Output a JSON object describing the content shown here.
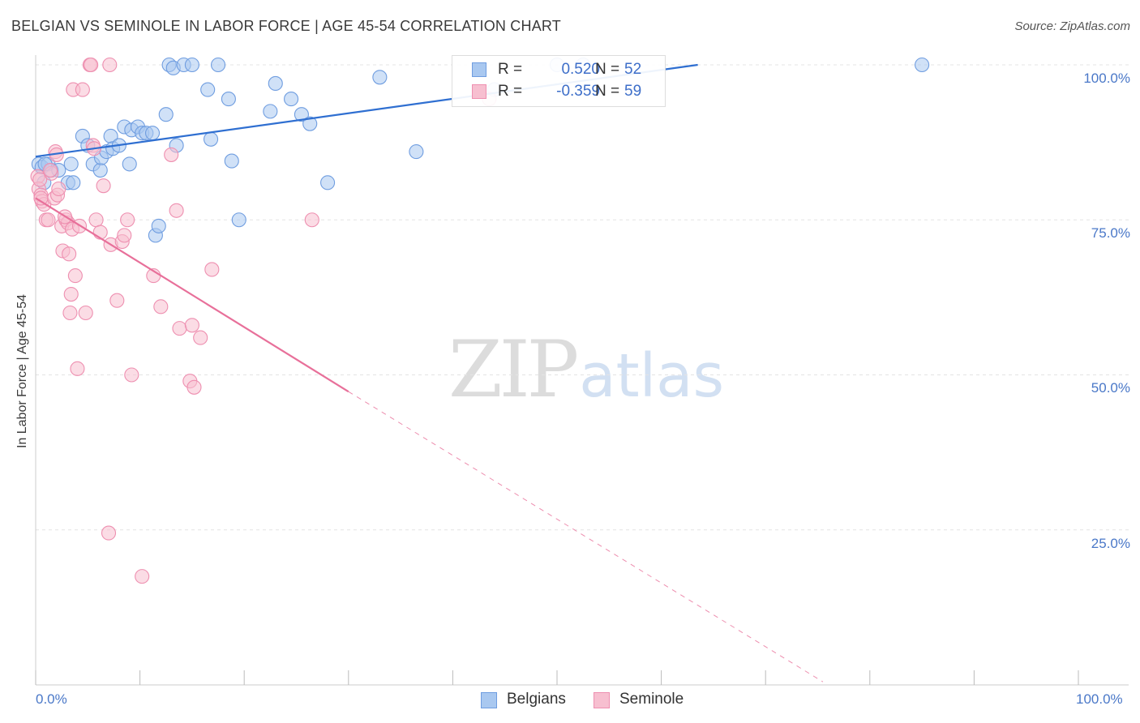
{
  "title": "BELGIAN VS SEMINOLE IN LABOR FORCE | AGE 45-54 CORRELATION CHART",
  "source": "Source: ZipAtlas.com",
  "watermark": {
    "zip": "ZIP",
    "atlas": "atlas"
  },
  "colors": {
    "belgians_fill": "#a9c8f0",
    "belgians_stroke": "#6f9de0",
    "belgians_line": "#2f6fd1",
    "seminole_fill": "#f7bfd0",
    "seminole_stroke": "#ee8fb0",
    "seminole_line": "#e8709a",
    "tick_label": "#4a78c8",
    "grid": "#e4e4e4"
  },
  "legend": {
    "rows": [
      {
        "r_label": "R =",
        "r_value": "0.520",
        "n_label": "N =",
        "n_value": "52"
      },
      {
        "r_label": "R =",
        "r_value": "-0.359",
        "n_label": "N =",
        "n_value": "59"
      }
    ],
    "bottom": [
      "Belgians",
      "Seminole"
    ]
  },
  "chart_data": {
    "type": "scatter",
    "title": "BELGIAN VS SEMINOLE IN LABOR FORCE | AGE 45-54 CORRELATION CHART",
    "xlabel": "",
    "ylabel": "In Labor Force | Age 45-54",
    "xlim": [
      0,
      100
    ],
    "ylim": [
      0,
      103
    ],
    "x_tick_labels": [
      "0.0%",
      "100.0%"
    ],
    "y_ticks": [
      25,
      50,
      75,
      100
    ],
    "y_tick_labels": [
      "25.0%",
      "50.0%",
      "75.0%",
      "100.0%"
    ],
    "grid": true,
    "series": [
      {
        "name": "Belgians",
        "trend": {
          "x0": 0,
          "y0": 85.2,
          "x1": 63.5,
          "y1": 100.0,
          "style": "solid"
        },
        "points": [
          [
            0.3,
            84.0
          ],
          [
            0.6,
            83.5
          ],
          [
            0.8,
            81.0
          ],
          [
            1.2,
            84.0
          ],
          [
            1.5,
            83.0
          ],
          [
            2.2,
            83.0
          ],
          [
            3.1,
            81.0
          ],
          [
            3.4,
            84.0
          ],
          [
            3.6,
            81.0
          ],
          [
            4.5,
            88.5
          ],
          [
            5.0,
            87.0
          ],
          [
            5.5,
            84.0
          ],
          [
            6.2,
            83.0
          ],
          [
            6.3,
            85.0
          ],
          [
            6.8,
            86.0
          ],
          [
            7.2,
            88.5
          ],
          [
            7.4,
            86.5
          ],
          [
            8.0,
            87.0
          ],
          [
            8.5,
            90.0
          ],
          [
            9.2,
            89.5
          ],
          [
            9.0,
            84.0
          ],
          [
            9.8,
            90.0
          ],
          [
            10.2,
            89.0
          ],
          [
            10.6,
            89.0
          ],
          [
            11.2,
            89.0
          ],
          [
            11.5,
            72.5
          ],
          [
            11.8,
            74.0
          ],
          [
            12.5,
            92.0
          ],
          [
            12.8,
            100.0
          ],
          [
            13.2,
            99.5
          ],
          [
            13.5,
            87.0
          ],
          [
            14.2,
            100.0
          ],
          [
            15.0,
            100.0
          ],
          [
            16.5,
            96.0
          ],
          [
            16.8,
            88.0
          ],
          [
            17.5,
            100.0
          ],
          [
            18.5,
            94.5
          ],
          [
            18.8,
            84.5
          ],
          [
            19.5,
            75.0
          ],
          [
            22.5,
            92.5
          ],
          [
            23.0,
            97.0
          ],
          [
            24.5,
            94.5
          ],
          [
            25.5,
            92.0
          ],
          [
            26.3,
            90.5
          ],
          [
            28.0,
            81.0
          ],
          [
            33.0,
            98.0
          ],
          [
            36.5,
            86.0
          ],
          [
            44.0,
            96.0
          ],
          [
            50.0,
            100.0
          ],
          [
            52.5,
            100.0
          ],
          [
            85.0,
            100.0
          ],
          [
            0.9,
            84.0
          ]
        ]
      },
      {
        "name": "Seminole",
        "trend": {
          "x0": 0,
          "y0": 78.5,
          "x1": 30.0,
          "y1": 47.3,
          "style": "solid",
          "extend_to_x": 75.5,
          "extend_to_y": 0.5
        },
        "points": [
          [
            0.2,
            82.0
          ],
          [
            0.3,
            80.0
          ],
          [
            0.4,
            81.5
          ],
          [
            0.5,
            79.0
          ],
          [
            0.6,
            78.0
          ],
          [
            0.8,
            77.5
          ],
          [
            1.0,
            75.0
          ],
          [
            1.2,
            75.0
          ],
          [
            1.5,
            82.5
          ],
          [
            1.8,
            78.5
          ],
          [
            1.9,
            86.0
          ],
          [
            2.0,
            85.5
          ],
          [
            2.1,
            79.0
          ],
          [
            2.2,
            80.0
          ],
          [
            2.5,
            74.0
          ],
          [
            2.6,
            70.0
          ],
          [
            2.9,
            75.0
          ],
          [
            3.1,
            74.5
          ],
          [
            3.2,
            69.5
          ],
          [
            3.3,
            60.0
          ],
          [
            3.4,
            63.0
          ],
          [
            3.5,
            73.5
          ],
          [
            3.6,
            96.0
          ],
          [
            3.8,
            66.0
          ],
          [
            4.0,
            51.0
          ],
          [
            4.2,
            74.0
          ],
          [
            4.5,
            96.0
          ],
          [
            4.8,
            60.0
          ],
          [
            5.2,
            100.0
          ],
          [
            5.3,
            100.0
          ],
          [
            5.5,
            87.0
          ],
          [
            5.6,
            86.5
          ],
          [
            5.8,
            75.0
          ],
          [
            6.2,
            73.0
          ],
          [
            6.5,
            80.5
          ],
          [
            7.0,
            24.5
          ],
          [
            7.1,
            100.0
          ],
          [
            7.2,
            71.0
          ],
          [
            7.8,
            62.0
          ],
          [
            8.3,
            71.5
          ],
          [
            8.5,
            72.5
          ],
          [
            8.8,
            75.0
          ],
          [
            9.2,
            50.0
          ],
          [
            10.2,
            17.5
          ],
          [
            11.3,
            66.0
          ],
          [
            12.0,
            61.0
          ],
          [
            13.0,
            85.5
          ],
          [
            13.5,
            76.5
          ],
          [
            13.8,
            57.5
          ],
          [
            14.8,
            49.0
          ],
          [
            15.0,
            58.0
          ],
          [
            15.2,
            48.0
          ],
          [
            15.8,
            56.0
          ],
          [
            16.9,
            67.0
          ],
          [
            26.5,
            75.0
          ],
          [
            1.4,
            83.0
          ],
          [
            0.5,
            78.5
          ],
          [
            2.8,
            75.5
          ],
          [
            43.5,
            94.5
          ]
        ]
      }
    ]
  }
}
